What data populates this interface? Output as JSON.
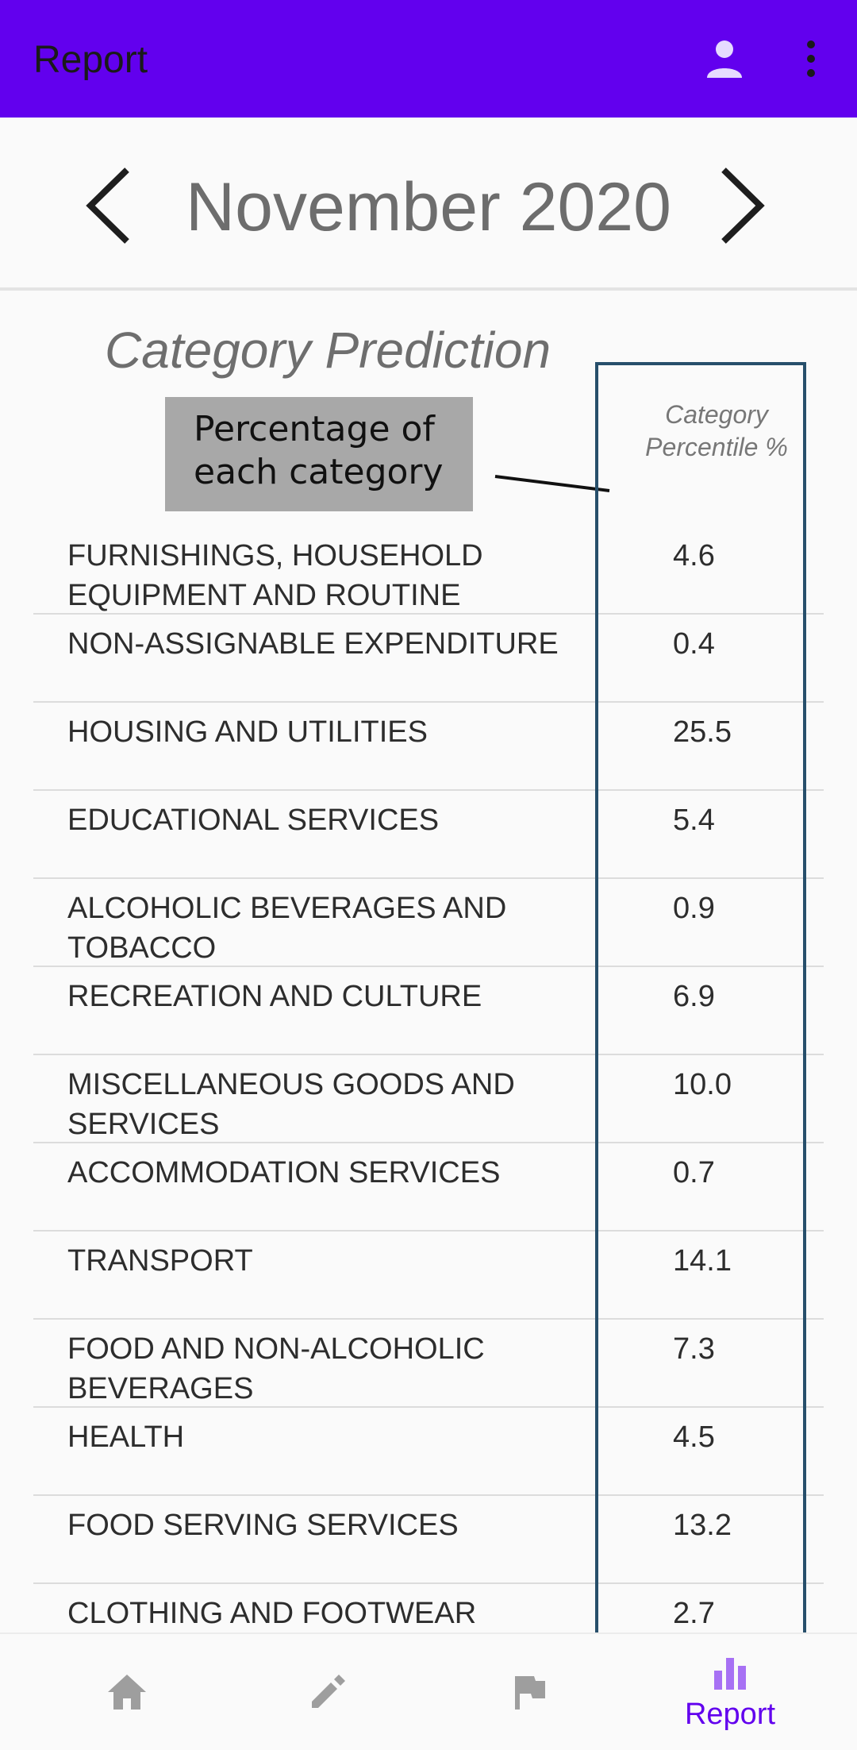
{
  "app_bar": {
    "title": "Report",
    "account_icon": "account-icon",
    "more_icon": "more-vert-icon"
  },
  "month_nav": {
    "label": "November 2020",
    "prev_icon": "chevron-left-icon",
    "next_icon": "chevron-right-icon"
  },
  "section": {
    "title": "Category Prediction",
    "annotation_line1": "Percentage of",
    "annotation_line2": "each category",
    "column_header_line1": "Category",
    "column_header_line2": "Percentile %"
  },
  "rows": [
    {
      "label": "FURNISHINGS, HOUSEHOLD EQUIPMENT AND ROUTINE",
      "value": "4.6"
    },
    {
      "label": "NON-ASSIGNABLE EXPENDITURE",
      "value": "0.4"
    },
    {
      "label": "HOUSING AND UTILITIES",
      "value": "25.5"
    },
    {
      "label": "EDUCATIONAL SERVICES",
      "value": "5.4"
    },
    {
      "label": "ALCOHOLIC BEVERAGES AND TOBACCO",
      "value": "0.9"
    },
    {
      "label": "RECREATION AND CULTURE",
      "value": "6.9"
    },
    {
      "label": "MISCELLANEOUS GOODS AND SERVICES",
      "value": "10.0"
    },
    {
      "label": "ACCOMMODATION SERVICES",
      "value": "0.7"
    },
    {
      "label": "TRANSPORT",
      "value": "14.1"
    },
    {
      "label": "FOOD AND NON-ALCOHOLIC BEVERAGES",
      "value": "7.3"
    },
    {
      "label": "HEALTH",
      "value": "4.5"
    },
    {
      "label": "FOOD SERVING SERVICES",
      "value": "13.2"
    },
    {
      "label": "CLOTHING AND FOOTWEAR",
      "value": "2.7"
    }
  ],
  "bottom_nav": {
    "items": [
      {
        "icon": "home-icon",
        "label": ""
      },
      {
        "icon": "edit-icon",
        "label": ""
      },
      {
        "icon": "flag-icon",
        "label": ""
      },
      {
        "icon": "bar-chart-icon",
        "label": "Report"
      }
    ]
  },
  "colors": {
    "primary": "#6200ee",
    "highlight_border": "#274f6b",
    "annotation_bg": "#a8a8a8",
    "inactive_icon": "#9e9e9e"
  }
}
